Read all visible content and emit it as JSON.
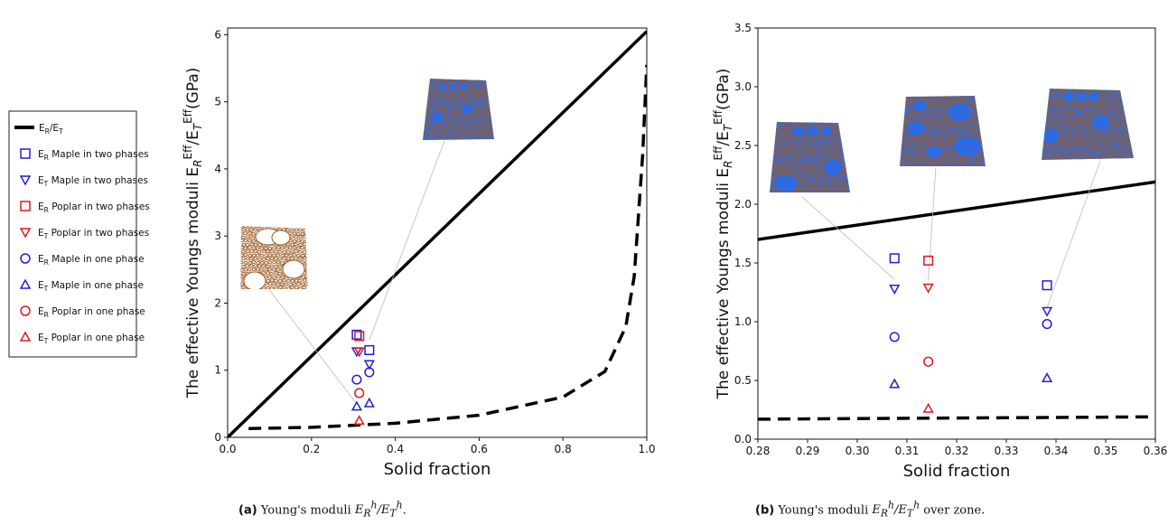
{
  "legend": [
    {
      "key": "er_et_line",
      "marker": "line",
      "color": "#000000",
      "label": "E_R/E_T"
    },
    {
      "key": "er_maple_two",
      "marker": "square",
      "color": "#1f1fd6",
      "label": "E_R Maple in two phases"
    },
    {
      "key": "et_maple_two",
      "marker": "tri-down",
      "color": "#1f1fd6",
      "label": "E_T Maple in two phases"
    },
    {
      "key": "er_poplar_two",
      "marker": "square",
      "color": "#e01818",
      "label": "E_R Poplar in two phases"
    },
    {
      "key": "et_poplar_two",
      "marker": "tri-down",
      "color": "#e01818",
      "label": "E_T Poplar in two phases"
    },
    {
      "key": "er_maple_one",
      "marker": "circle",
      "color": "#1f1fd6",
      "label": "E_R Maple in one phase"
    },
    {
      "key": "et_maple_one",
      "marker": "tri-up",
      "color": "#1f1fd6",
      "label": "E_T Maple in one phase"
    },
    {
      "key": "er_poplar_one",
      "marker": "circle",
      "color": "#e01818",
      "label": "E_R Poplar in one phase"
    },
    {
      "key": "et_poplar_one",
      "marker": "tri-up",
      "color": "#e01818",
      "label": "E_T Poplar in one phase"
    }
  ],
  "colors": {
    "blue": "#1f1fd6",
    "red": "#e01818",
    "line": "#000000",
    "wood": "#9a5a28",
    "pore": "#2e6be0"
  },
  "chart_data": [
    {
      "type": "scatter",
      "id": "a",
      "xlabel": "Solid fraction",
      "ylabel": "The effective Youngs moduli E_R^Eff/E_T^Eff(GPa)",
      "xlim": [
        0.0,
        1.0
      ],
      "ylim": [
        0,
        6.1
      ],
      "xticks": [
        "0.0",
        "0.2",
        "0.4",
        "0.6",
        "0.8",
        "1.0"
      ],
      "yticks": [
        "0",
        "1",
        "2",
        "3",
        "4",
        "5",
        "6"
      ],
      "grid": false,
      "lines": [
        {
          "name": "E_R/E_T",
          "style": "solid",
          "x": [
            0.0,
            1.0
          ],
          "y": [
            0.0,
            6.05
          ]
        },
        {
          "name": "",
          "style": "dashed",
          "x": [
            0.05,
            0.2,
            0.4,
            0.6,
            0.8,
            0.9,
            0.95,
            0.97,
            0.99,
            1.0
          ],
          "y": [
            0.13,
            0.15,
            0.21,
            0.33,
            0.6,
            0.98,
            1.65,
            2.4,
            4.2,
            5.55
          ]
        }
      ],
      "series": [
        {
          "key": "er_maple_two",
          "x": [
            0.308,
            0.338
          ],
          "y": [
            1.53,
            1.3
          ]
        },
        {
          "key": "et_maple_two",
          "x": [
            0.308,
            0.338
          ],
          "y": [
            1.28,
            1.09
          ]
        },
        {
          "key": "er_poplar_two",
          "x": [
            0.314
          ],
          "y": [
            1.51
          ]
        },
        {
          "key": "et_poplar_two",
          "x": [
            0.314
          ],
          "y": [
            1.28
          ]
        },
        {
          "key": "er_maple_one",
          "x": [
            0.308,
            0.338
          ],
          "y": [
            0.86,
            0.97
          ]
        },
        {
          "key": "et_maple_one",
          "x": [
            0.308,
            0.338
          ],
          "y": [
            0.46,
            0.51
          ]
        },
        {
          "key": "er_poplar_one",
          "x": [
            0.314
          ],
          "y": [
            0.66
          ]
        },
        {
          "key": "et_poplar_one",
          "x": [
            0.314
          ],
          "y": [
            0.25
          ]
        }
      ]
    },
    {
      "type": "scatter",
      "id": "b",
      "xlabel": "Solid fraction",
      "ylabel": "The effective Youngs moduli E_R^Eff/E_T^Eff(GPa)",
      "xlim": [
        0.28,
        0.36
      ],
      "ylim": [
        0.0,
        3.5
      ],
      "xticks": [
        "0.28",
        "0.29",
        "0.30",
        "0.31",
        "0.32",
        "0.33",
        "0.34",
        "0.35",
        "0.36"
      ],
      "yticks": [
        "0.0",
        "0.5",
        "1.0",
        "1.5",
        "2.0",
        "2.5",
        "3.0",
        "3.5"
      ],
      "grid": false,
      "lines": [
        {
          "name": "E_R/E_T",
          "style": "solid",
          "x": [
            0.28,
            0.36
          ],
          "y": [
            1.7,
            2.19
          ]
        },
        {
          "name": "",
          "style": "dashed",
          "x": [
            0.28,
            0.36
          ],
          "y": [
            0.17,
            0.19
          ]
        }
      ],
      "series": [
        {
          "key": "er_maple_two",
          "x": [
            0.3075,
            0.3382
          ],
          "y": [
            1.54,
            1.31
          ]
        },
        {
          "key": "et_maple_two",
          "x": [
            0.3075,
            0.3382
          ],
          "y": [
            1.28,
            1.09
          ]
        },
        {
          "key": "er_poplar_two",
          "x": [
            0.3143
          ],
          "y": [
            1.52
          ]
        },
        {
          "key": "et_poplar_two",
          "x": [
            0.3143
          ],
          "y": [
            1.29
          ]
        },
        {
          "key": "er_maple_one",
          "x": [
            0.3075,
            0.3382
          ],
          "y": [
            0.87,
            0.98
          ]
        },
        {
          "key": "et_maple_one",
          "x": [
            0.3075,
            0.3382
          ],
          "y": [
            0.47,
            0.52
          ]
        },
        {
          "key": "er_poplar_one",
          "x": [
            0.3143
          ],
          "y": [
            0.66
          ]
        },
        {
          "key": "et_poplar_one",
          "x": [
            0.3143
          ],
          "y": [
            0.26
          ]
        }
      ]
    }
  ],
  "captions": {
    "a_tag": "(a)",
    "a_text": "Young's moduli ",
    "a_math": "E_R^h/E_T^h",
    "a_end": ".",
    "b_tag": "(b)",
    "b_text": "Young's moduli ",
    "b_math": "E_R^h/E_T^h",
    "b_end": " over zone."
  }
}
